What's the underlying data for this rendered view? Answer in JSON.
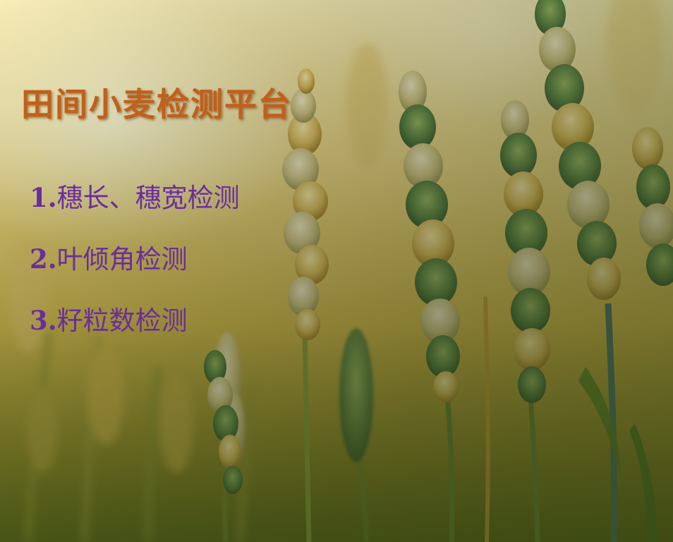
{
  "slide": {
    "title": "田间小麦检测平台",
    "items": [
      {
        "number": "1.",
        "text": "穗长、穗宽检测"
      },
      {
        "number": "2.",
        "text": "叶倾角检测"
      },
      {
        "number": "3.",
        "text": "籽粒数检测"
      }
    ]
  },
  "background": {
    "subject": "wheat-field-photo"
  },
  "colors": {
    "title": "#c1601b",
    "list_text": "#6a2d9c"
  }
}
